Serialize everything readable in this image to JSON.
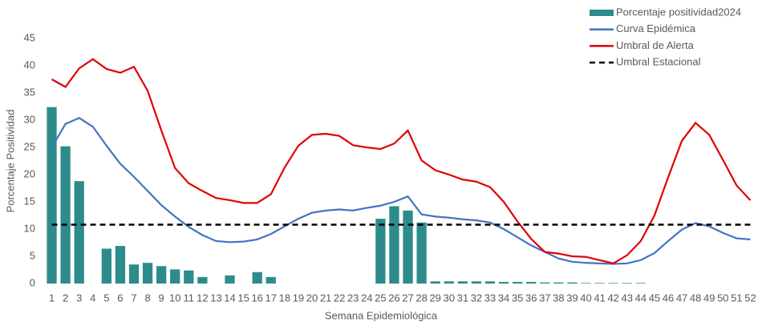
{
  "chart_data": {
    "type": "combo",
    "x_label": "Semana Epidemiológica",
    "y_label": "Porcentaje Positividad",
    "categories": [
      "1",
      "2",
      "3",
      "4",
      "5",
      "6",
      "7",
      "8",
      "9",
      "10",
      "11",
      "12",
      "13",
      "14",
      "15",
      "16",
      "17",
      "18",
      "19",
      "20",
      "21",
      "22",
      "23",
      "24",
      "25",
      "26",
      "27",
      "28",
      "29",
      "30",
      "31",
      "32",
      "33",
      "34",
      "35",
      "36",
      "37",
      "38",
      "39",
      "40",
      "41",
      "42",
      "43",
      "44",
      "45",
      "46",
      "47",
      "48",
      "49",
      "50",
      "51",
      "52"
    ],
    "ylim": [
      0,
      45
    ],
    "yticks": [
      0,
      5,
      10,
      15,
      20,
      25,
      30,
      35,
      40,
      45
    ],
    "legend": "top-right",
    "series": [
      {
        "name": "Porcentaje positividad2024",
        "type": "bar",
        "color": "#2e8b8b",
        "values": [
          32.4,
          25.2,
          18.8,
          0,
          6.4,
          6.9,
          3.5,
          3.8,
          3.2,
          2.6,
          2.4,
          1.2,
          0,
          1.5,
          0,
          2.1,
          1.2,
          0,
          0,
          0,
          0,
          0,
          0,
          0,
          11.9,
          14.2,
          13.4,
          11.2,
          0.4,
          0.4,
          0.4,
          0.4,
          0.4,
          0.3,
          0.3,
          0.3,
          0.2,
          0.2,
          0.2,
          0.1,
          0.1,
          0.1,
          0.1,
          0.1,
          0,
          0,
          0,
          0,
          0,
          0,
          0,
          0
        ]
      },
      {
        "name": "Curva Epidémica",
        "type": "line",
        "color": "#4472c4",
        "values": [
          25,
          29.3,
          30.4,
          28.8,
          25.3,
          22,
          19.6,
          17,
          14.4,
          12.3,
          10.4,
          8.9,
          7.8,
          7.6,
          7.7,
          8.1,
          9.1,
          10.5,
          11.9,
          13,
          13.4,
          13.6,
          13.4,
          13.9,
          14.3,
          15,
          16,
          12.7,
          12.3,
          12.1,
          11.8,
          11.6,
          11.2,
          10,
          8.5,
          7,
          5.8,
          4.6,
          4,
          3.8,
          3.7,
          3.6,
          3.7,
          4.3,
          5.6,
          7.8,
          9.9,
          11.1,
          10.5,
          9.3,
          8.3,
          8.1
        ]
      },
      {
        "name": "Umbral de Alerta",
        "type": "line",
        "color": "#e00000",
        "values": [
          37.5,
          36.1,
          39.5,
          41.2,
          39.4,
          38.7,
          39.8,
          35.4,
          28.1,
          21.2,
          18.4,
          17,
          15.7,
          15.3,
          14.8,
          14.8,
          16.4,
          21.3,
          25.3,
          27.3,
          27.5,
          27.1,
          25.4,
          25,
          24.7,
          25.7,
          28.1,
          22.6,
          20.8,
          20,
          19.1,
          18.7,
          17.7,
          15,
          11.4,
          8.2,
          5.8,
          5.5,
          5,
          4.9,
          4.3,
          3.7,
          5.2,
          7.8,
          12.5,
          19.5,
          26.2,
          29.5,
          27.3,
          22.7,
          18,
          15.3
        ]
      },
      {
        "name": "Umbral Estacional",
        "type": "line",
        "color": "#000000",
        "dashed": true,
        "values": [
          10.8,
          10.8,
          10.8,
          10.8,
          10.8,
          10.8,
          10.8,
          10.8,
          10.8,
          10.8,
          10.8,
          10.8,
          10.8,
          10.8,
          10.8,
          10.8,
          10.8,
          10.8,
          10.8,
          10.8,
          10.8,
          10.8,
          10.8,
          10.8,
          10.8,
          10.8,
          10.8,
          10.8,
          10.8,
          10.8,
          10.8,
          10.8,
          10.8,
          10.8,
          10.8,
          10.8,
          10.8,
          10.8,
          10.8,
          10.8,
          10.8,
          10.8,
          10.8,
          10.8,
          10.8,
          10.8,
          10.8,
          10.8,
          10.8,
          10.8,
          10.8,
          10.8
        ]
      }
    ]
  }
}
